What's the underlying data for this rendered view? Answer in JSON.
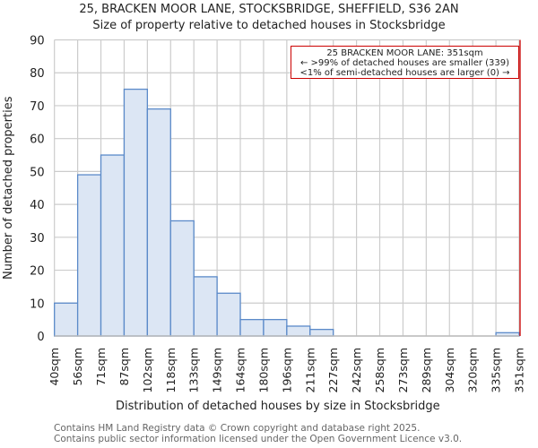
{
  "header": {
    "title": "25, BRACKEN MOOR LANE, STOCKSBRIDGE, SHEFFIELD, S36 2AN",
    "subtitle": "Size of property relative to detached houses in Stocksbridge"
  },
  "annotation": {
    "line1": "25 BRACKEN MOOR LANE: 351sqm",
    "line2": "← >99% of detached houses are smaller (339)",
    "line3": "<1% of semi-detached houses are larger (0) →"
  },
  "footer": {
    "line1": "Contains HM Land Registry data © Crown copyright and database right 2025.",
    "line2": "Contains public sector information licensed under the Open Government Licence v3.0."
  },
  "colors": {
    "bar_fill": "#dce6f4",
    "bar_edge": "#5b8ac9",
    "grid": "#cccccc",
    "marker": "#cc0000"
  },
  "chart_data": {
    "type": "bar",
    "title": "25, BRACKEN MOOR LANE, STOCKSBRIDGE, SHEFFIELD, S36 2AN",
    "subtitle": "Size of property relative to detached houses in Stocksbridge",
    "xlabel": "Distribution of detached houses by size in Stocksbridge",
    "ylabel": "Number of detached properties",
    "categories": [
      "40sqm",
      "56sqm",
      "71sqm",
      "87sqm",
      "102sqm",
      "118sqm",
      "133sqm",
      "149sqm",
      "164sqm",
      "180sqm",
      "196sqm",
      "211sqm",
      "227sqm",
      "242sqm",
      "258sqm",
      "273sqm",
      "289sqm",
      "304sqm",
      "320sqm",
      "335sqm",
      "351sqm"
    ],
    "values": [
      10,
      49,
      55,
      75,
      69,
      35,
      18,
      13,
      5,
      5,
      3,
      2,
      0,
      0,
      0,
      0,
      0,
      0,
      0,
      1
    ],
    "yticks": [
      0,
      10,
      20,
      30,
      40,
      50,
      60,
      70,
      80,
      90
    ],
    "ylim": [
      0,
      90
    ],
    "grid": true,
    "marker": {
      "x_label": "351sqm",
      "value": 351
    }
  }
}
